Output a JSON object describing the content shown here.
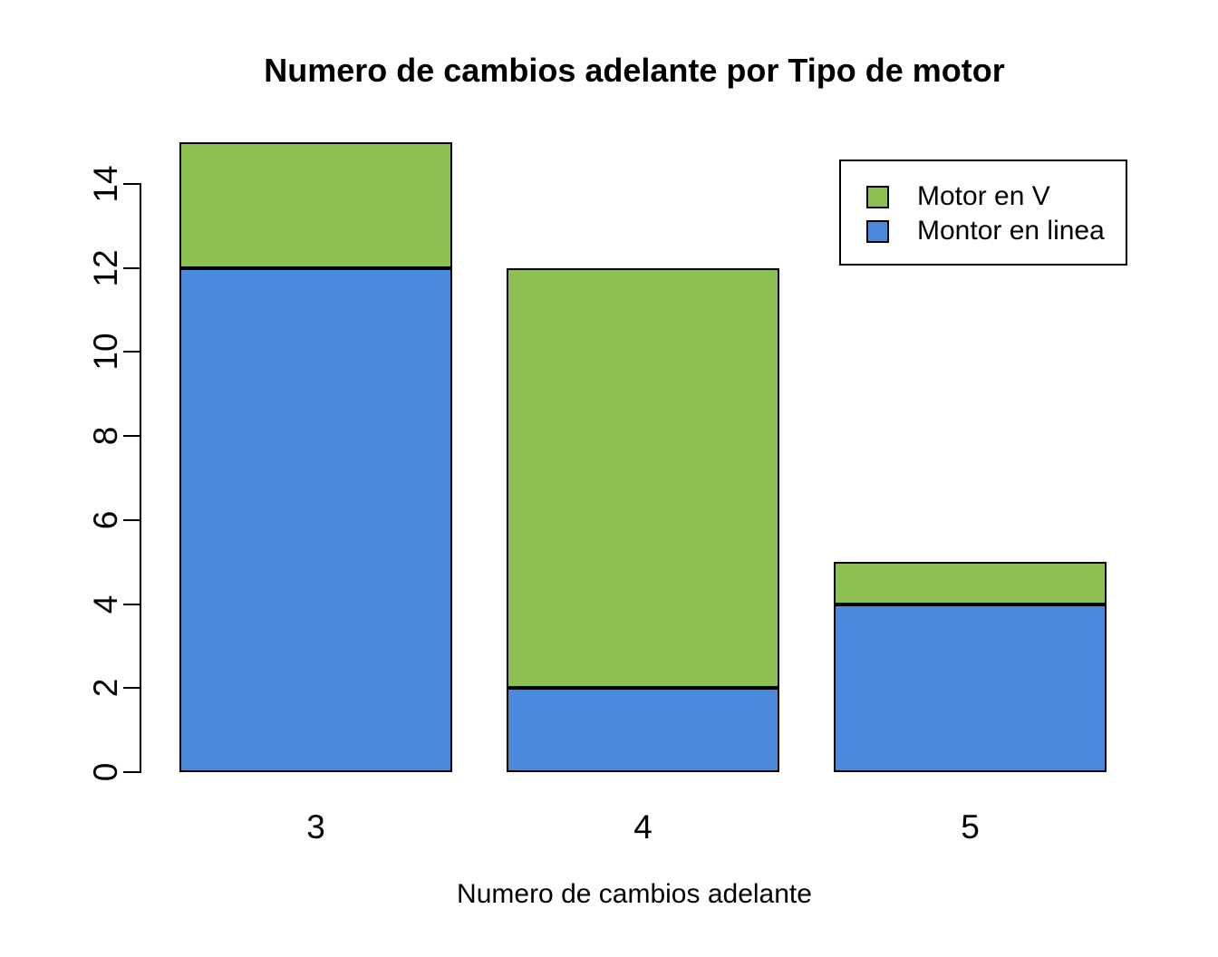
{
  "chart_data": {
    "type": "bar",
    "stacked": true,
    "title": "Numero de cambios adelante por Tipo de motor",
    "xlabel": "Numero de cambios adelante",
    "ylabel": "",
    "categories": [
      "3",
      "4",
      "5"
    ],
    "series": [
      {
        "name": "Montor en linea",
        "color": "#4A89DC",
        "values": [
          12,
          2,
          4
        ]
      },
      {
        "name": "Motor en V",
        "color": "#8CC152",
        "values": [
          3,
          10,
          1
        ]
      }
    ],
    "totals": [
      15,
      12,
      5
    ],
    "yticks": [
      0,
      2,
      4,
      6,
      8,
      10,
      12,
      14
    ],
    "ylim": [
      0,
      15
    ],
    "grid": false,
    "legend": {
      "position": "top-right",
      "entries": [
        {
          "label": "Motor en V",
          "color": "#8CC152"
        },
        {
          "label": "Montor en linea",
          "color": "#4A89DC"
        }
      ]
    },
    "colors": {
      "bar_border": "#000000",
      "axis": "#000000",
      "background": "#ffffff"
    }
  }
}
